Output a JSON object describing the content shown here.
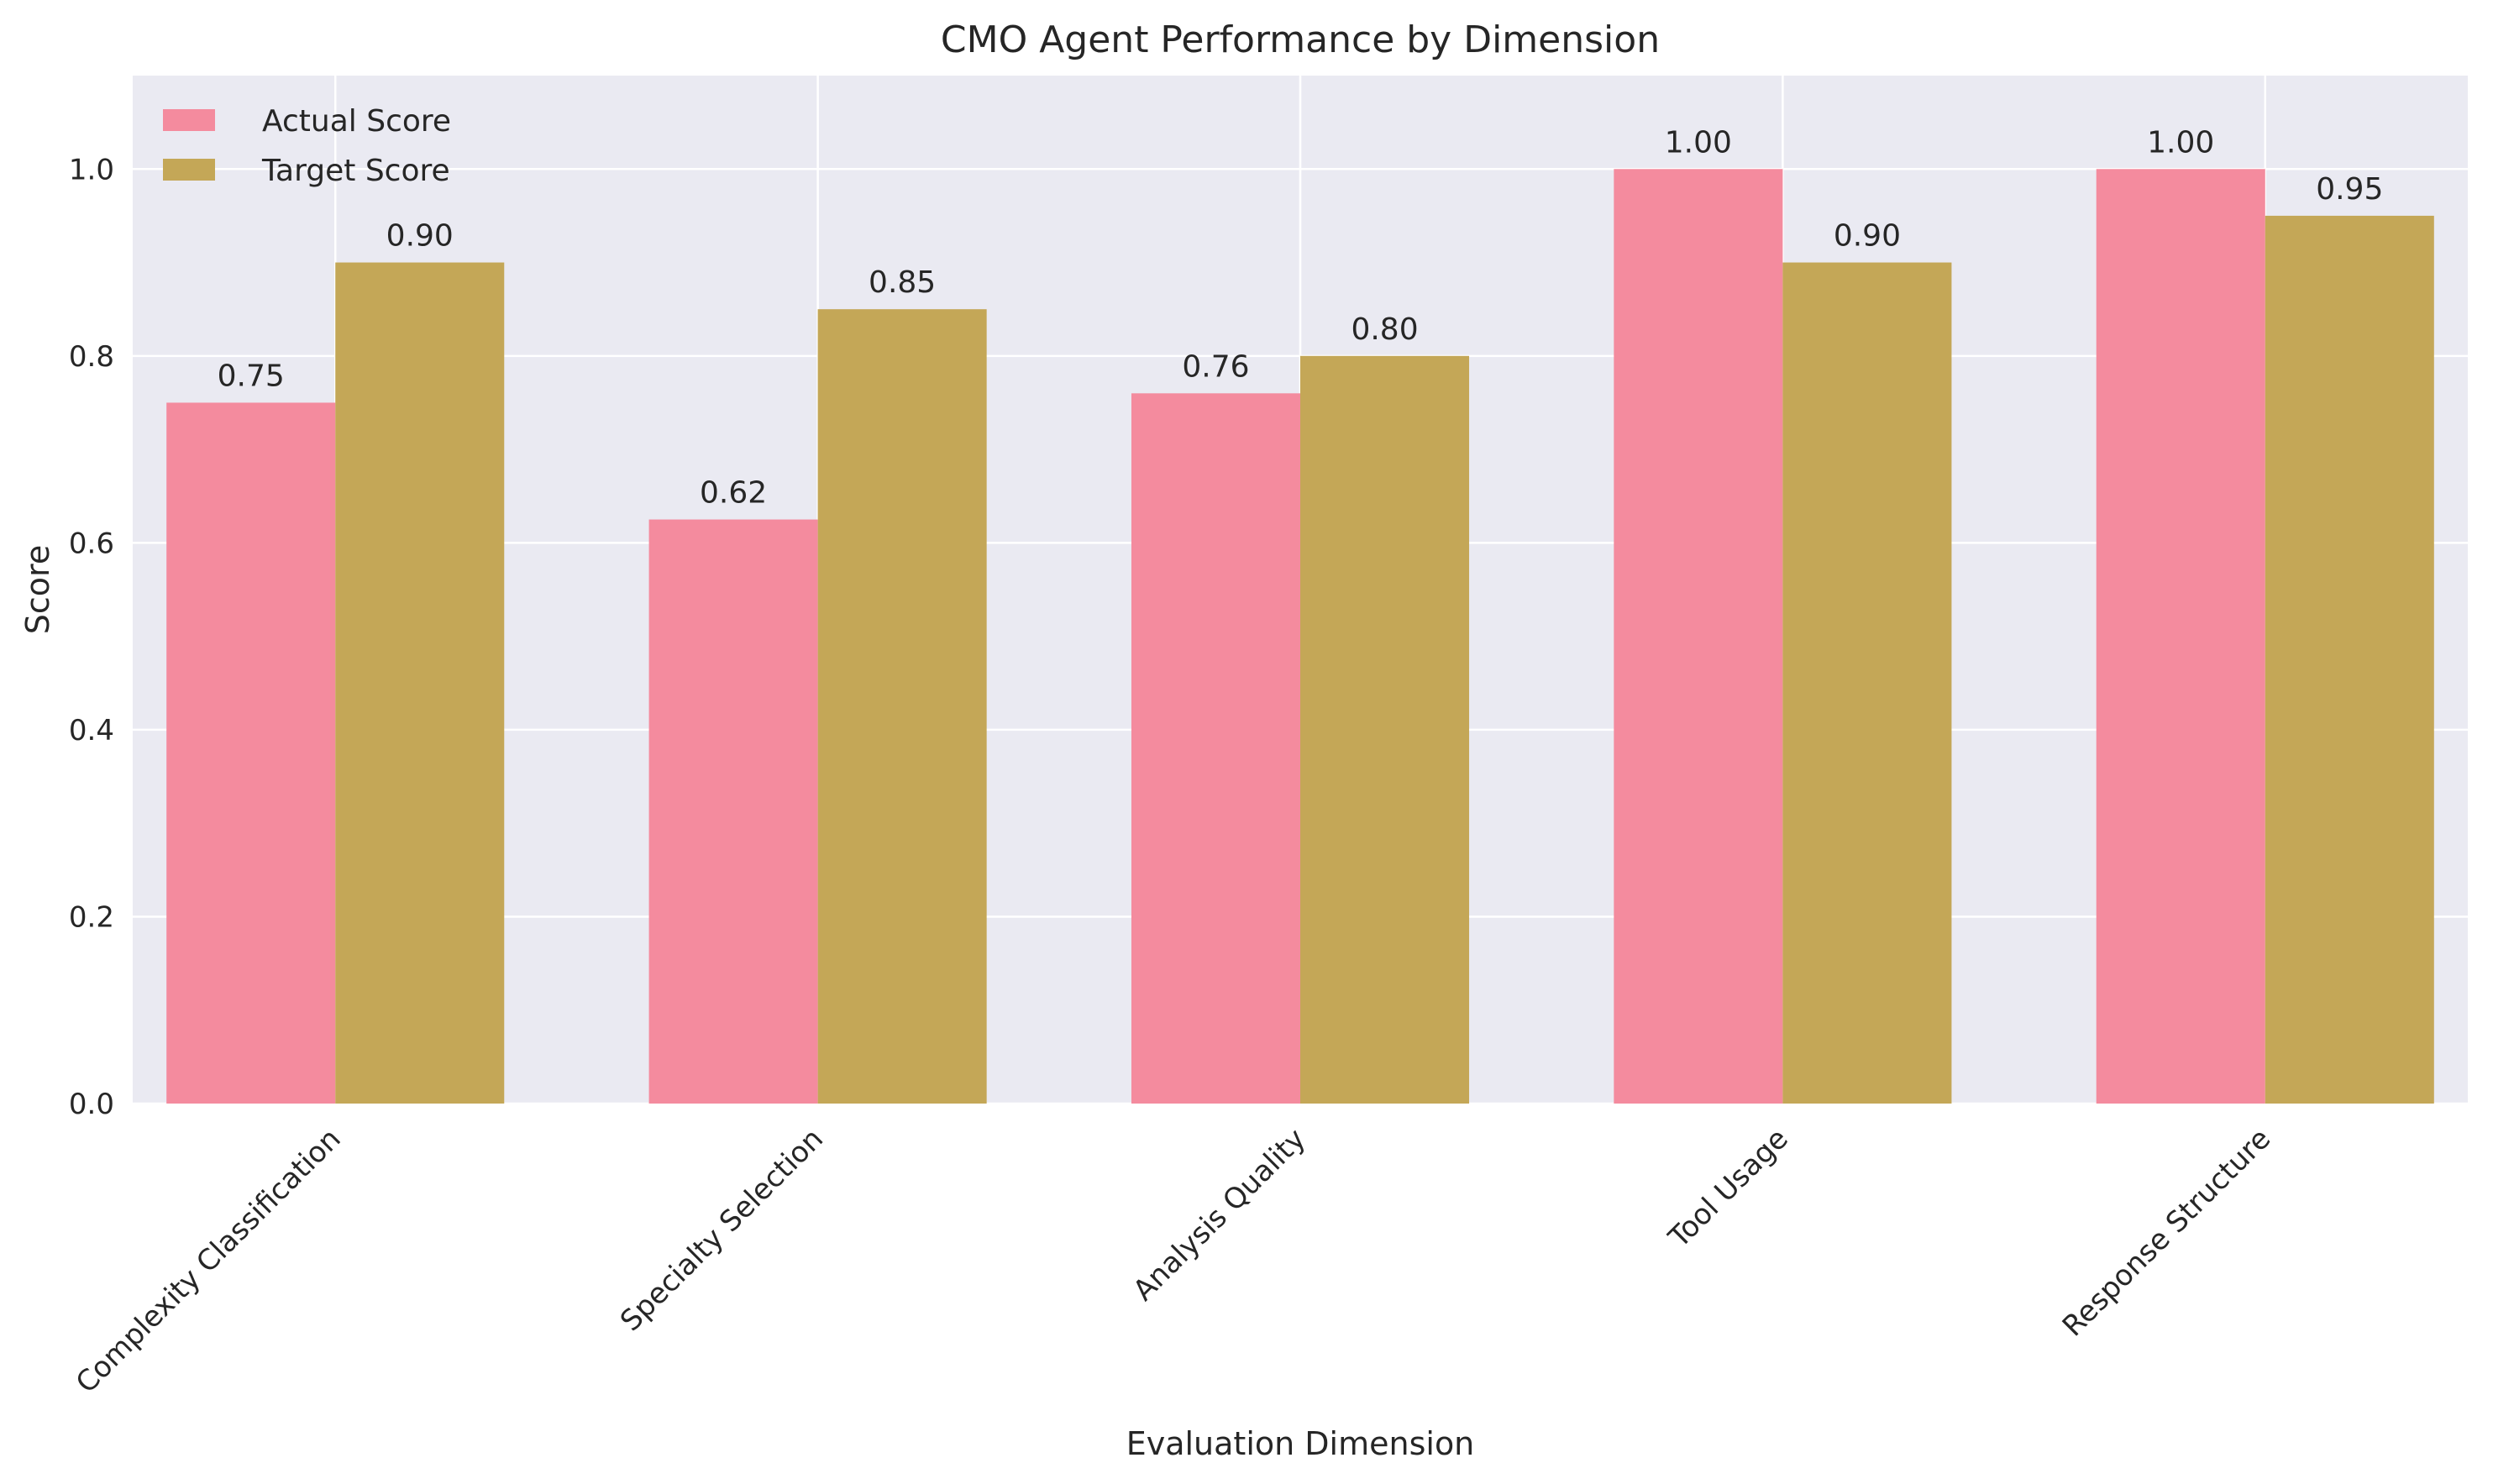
{
  "chart_data": {
    "type": "bar",
    "title": "CMO Agent Performance by Dimension",
    "xlabel": "Evaluation Dimension",
    "ylabel": "Score",
    "ylim": [
      0,
      1.1
    ],
    "yticks": [
      "0.0",
      "0.2",
      "0.4",
      "0.6",
      "0.8",
      "1.0"
    ],
    "grid": true,
    "legend_position": "top-left",
    "categories": [
      "Complexity Classification",
      "Specialty Selection",
      "Analysis Quality",
      "Tool Usage",
      "Response Structure"
    ],
    "series": [
      {
        "name": "Actual Score",
        "color": "#f48b9e",
        "values": [
          0.75,
          0.625,
          0.76,
          1.0,
          1.0
        ],
        "labels": [
          "0.75",
          "0.62",
          "0.76",
          "1.00",
          "1.00"
        ]
      },
      {
        "name": "Target Score",
        "color": "#c4a757",
        "values": [
          0.9,
          0.85,
          0.8,
          0.9,
          0.95
        ],
        "labels": [
          "0.90",
          "0.85",
          "0.80",
          "0.90",
          "0.95"
        ]
      }
    ]
  }
}
